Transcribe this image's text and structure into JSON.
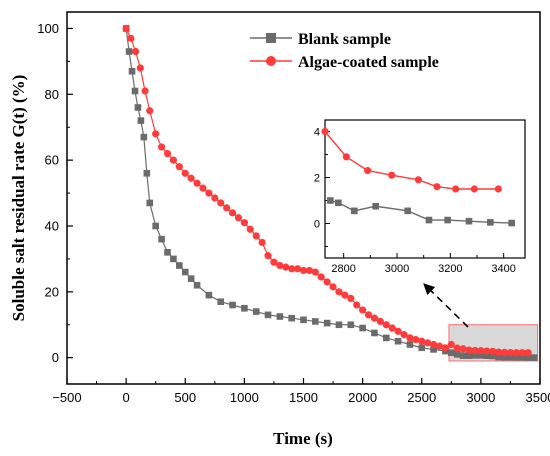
{
  "chart_data": [
    {
      "type": "line",
      "xlabel": "Time (s)",
      "ylabel": "Soluble salt residual rate G(t) (%)",
      "xlim": [
        -500,
        3500
      ],
      "ylim": [
        -8,
        105
      ],
      "xticks": [
        -500,
        0,
        500,
        1000,
        1500,
        2000,
        2500,
        3000,
        3500
      ],
      "xtick_labels": [
        "−500",
        "0",
        "500",
        "1000",
        "1500",
        "2000",
        "2500",
        "3000",
        "3500"
      ],
      "yticks": [
        0,
        20,
        40,
        60,
        80,
        100
      ],
      "ytick_labels": [
        "0",
        "20",
        "40",
        "60",
        "80",
        "100"
      ],
      "grid": false,
      "legend_position": "top-right",
      "series": [
        {
          "name": "Blank sample",
          "color": "#6b6b6b",
          "marker": "square",
          "x": [
            0,
            25,
            50,
            75,
            100,
            125,
            150,
            175,
            200,
            250,
            300,
            350,
            400,
            450,
            500,
            550,
            600,
            700,
            800,
            900,
            1000,
            1100,
            1200,
            1300,
            1400,
            1500,
            1600,
            1700,
            1800,
            1900,
            2000,
            2100,
            2200,
            2300,
            2400,
            2500,
            2600,
            2700,
            2750,
            2800,
            2850,
            2900,
            2950,
            3000,
            3050,
            3100,
            3150,
            3200,
            3250,
            3300,
            3350,
            3400,
            3450
          ],
          "y": [
            100,
            93,
            87,
            81,
            76,
            72,
            67,
            56,
            47,
            40,
            36,
            32,
            30,
            28,
            26,
            24,
            22,
            19,
            17,
            16,
            15,
            14,
            13,
            12.5,
            12,
            11.5,
            11,
            10.5,
            10,
            10,
            9,
            7.5,
            6,
            5,
            4,
            3,
            2.5,
            2,
            1.5,
            1,
            0.6,
            0.6,
            0.7,
            0.7,
            0.6,
            0.5,
            0.2,
            0.15,
            0.15,
            0.1,
            0.1,
            0.05,
            0.02
          ]
        },
        {
          "name": "Algae-coated sample",
          "color": "#ff3b3b",
          "marker": "circle",
          "x": [
            0,
            40,
            80,
            120,
            160,
            200,
            250,
            300,
            350,
            400,
            450,
            500,
            550,
            600,
            650,
            700,
            750,
            800,
            850,
            900,
            950,
            1000,
            1050,
            1100,
            1150,
            1200,
            1250,
            1300,
            1350,
            1400,
            1450,
            1500,
            1550,
            1600,
            1650,
            1700,
            1750,
            1800,
            1850,
            1900,
            1950,
            2000,
            2050,
            2100,
            2150,
            2200,
            2250,
            2300,
            2350,
            2400,
            2450,
            2500,
            2550,
            2600,
            2650,
            2700,
            2750,
            2800,
            2850,
            2900,
            2950,
            3000,
            3050,
            3100,
            3150,
            3200,
            3250,
            3300,
            3350,
            3400
          ],
          "y": [
            100,
            97,
            93,
            88,
            81,
            75,
            68,
            64,
            62,
            60,
            58,
            56,
            54.5,
            53,
            51.5,
            50,
            48.5,
            47,
            45.5,
            44,
            42.5,
            41,
            39,
            37,
            35,
            31,
            29,
            28,
            27.5,
            27,
            27,
            26.5,
            26.5,
            26,
            24.5,
            23,
            21.5,
            20,
            19,
            18,
            16,
            14.5,
            13,
            12,
            11,
            10,
            9,
            8,
            7,
            6,
            5.5,
            5,
            4.5,
            4,
            3.5,
            3,
            4,
            2.9,
            2.7,
            2.3,
            2.2,
            2.1,
            2,
            1.9,
            1.7,
            1.6,
            1.55,
            1.5,
            1.5,
            1.5
          ]
        }
      ],
      "highlight_region": {
        "x": [
          2730,
          3480
        ],
        "y": [
          -1,
          10
        ]
      }
    },
    {
      "type": "line",
      "role": "inset",
      "xlim": [
        2730,
        3480
      ],
      "ylim": [
        -1.5,
        4.5
      ],
      "xticks": [
        2800,
        2900,
        3000,
        3100,
        3200,
        3300,
        3400
      ],
      "xtick_labels": [
        "2800",
        "",
        "3000",
        "",
        "3200",
        "",
        "3400"
      ],
      "yticks": [
        0,
        2,
        4
      ],
      "ytick_labels": [
        "0",
        "2",
        "4"
      ],
      "series": [
        {
          "name": "Blank sample",
          "color": "#6b6b6b",
          "marker": "square",
          "x": [
            2750,
            2780,
            2840,
            2920,
            3040,
            3120,
            3190,
            3270,
            3350,
            3430
          ],
          "y": [
            1.0,
            0.9,
            0.55,
            0.75,
            0.55,
            0.15,
            0.15,
            0.1,
            0.05,
            0.02
          ]
        },
        {
          "name": "Algae-coated sample",
          "color": "#ff3b3b",
          "marker": "circle",
          "x": [
            2730,
            2810,
            2890,
            2980,
            3080,
            3150,
            3220,
            3290,
            3380
          ],
          "y": [
            4.0,
            2.9,
            2.3,
            2.1,
            1.9,
            1.6,
            1.5,
            1.5,
            1.5
          ]
        }
      ]
    }
  ]
}
